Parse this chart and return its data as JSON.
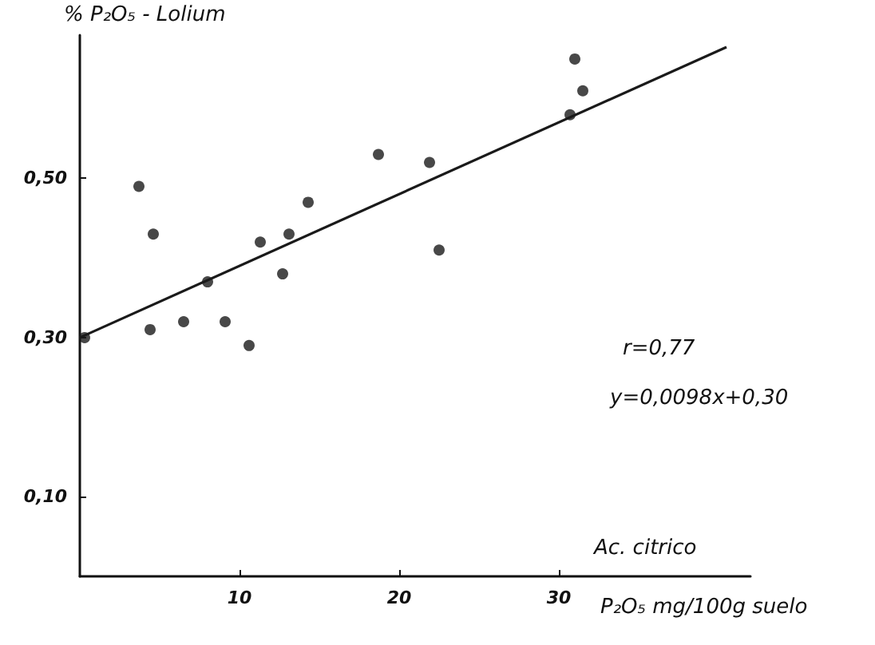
{
  "chart_data": {
    "type": "scatter",
    "xlabel": "P₂O₅ mg/100g suelo",
    "ylabel": "% P₂O₅ - Lolium",
    "xlim": [
      0,
      42
    ],
    "xticks": [
      10,
      20,
      30
    ],
    "ylim": [
      0,
      0.68
    ],
    "yticks": [
      {
        "value": 0.1,
        "label": "0,10"
      },
      {
        "value": 0.3,
        "label": "0,30"
      },
      {
        "value": 0.5,
        "label": "0,50"
      }
    ],
    "grid": false,
    "marker": "circle",
    "annotations": [
      "r=0,77",
      "y=0,0098x+0,30",
      "Ac. citrico"
    ],
    "series": [
      {
        "color": "#1a1a1a",
        "x": [
          0.3,
          3.7,
          4.6,
          4.4,
          6.5,
          8.0,
          9.1,
          10.6,
          11.3,
          12.7,
          13.1,
          14.3,
          18.7,
          21.9,
          22.5,
          30.7,
          31.0,
          31.5
        ],
        "values": [
          0.3,
          0.49,
          0.43,
          0.31,
          0.32,
          0.37,
          0.32,
          0.29,
          0.42,
          0.38,
          0.43,
          0.47,
          0.53,
          0.52,
          0.41,
          0.58,
          0.65,
          0.61
        ]
      },
      {
        "type": "line",
        "marker": "none",
        "color": "#1a1a1a",
        "x": [
          0,
          40.5
        ],
        "values": [
          0.3,
          0.665
        ]
      }
    ]
  }
}
